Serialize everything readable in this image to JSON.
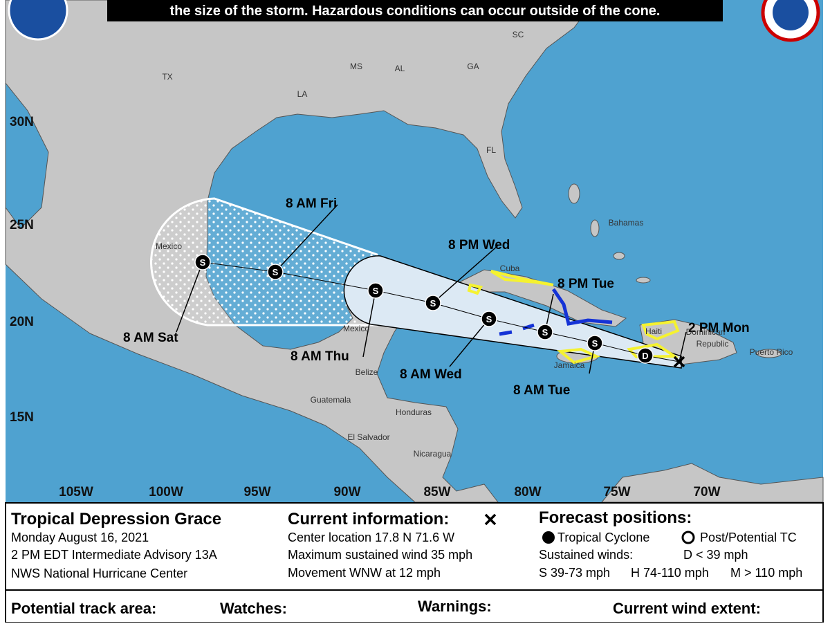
{
  "banner": "the size of the storm. Hazardous conditions can occur outside of the cone.",
  "map": {
    "regions": [
      "TX",
      "LA",
      "MS",
      "AL",
      "GA",
      "SC",
      "FL",
      "Mexico",
      "Bahamas",
      "Cuba",
      "Haiti",
      "Dominican",
      "Republic",
      "Puerto Rico",
      "Jamaica",
      "Mexico",
      "Belize",
      "Guatemala",
      "Honduras",
      "El Salvador",
      "Nicaragua"
    ],
    "latitudes": [
      "30N",
      "25N",
      "20N",
      "15N"
    ],
    "longitudes": [
      "105W",
      "100W",
      "95W",
      "90W",
      "85W",
      "80W",
      "75W",
      "70W"
    ],
    "current": {
      "time": "2 PM Mon"
    },
    "points": [
      {
        "marker": "D"
      },
      {
        "time": "8 AM Tue",
        "marker": "S"
      },
      {
        "time": "8 PM Tue",
        "marker": "S"
      },
      {
        "time": "8 AM Wed",
        "marker": "S"
      },
      {
        "time": "8 PM Wed",
        "marker": "S"
      },
      {
        "time": "8 AM Thu",
        "marker": "S"
      },
      {
        "time": "8 AM Fri",
        "marker": "S"
      },
      {
        "time": "8 AM Sat",
        "marker": "S"
      }
    ]
  },
  "storm": {
    "name": "Tropical Depression Grace",
    "date": "Monday August 16, 2021",
    "advisory": "2 PM EDT Intermediate Advisory 13A",
    "agency": "NWS National Hurricane Center"
  },
  "current_info": {
    "title": "Current information:",
    "lines": [
      "Center location 17.8 N 71.6 W",
      "Maximum sustained wind 35 mph",
      "Movement WNW at 12 mph"
    ]
  },
  "forecast_positions": {
    "title": "Forecast positions:",
    "tropical": "Tropical Cyclone",
    "post": "Post/Potential TC",
    "winds": "Sustained winds:",
    "classes": [
      "D < 39 mph",
      "S 39-73 mph",
      "H 74-110 mph",
      "M > 110 mph"
    ]
  },
  "legend": {
    "track": "Potential track area:",
    "watches": "Watches:",
    "warnings": "Warnings:",
    "wind": "Current wind extent:"
  }
}
